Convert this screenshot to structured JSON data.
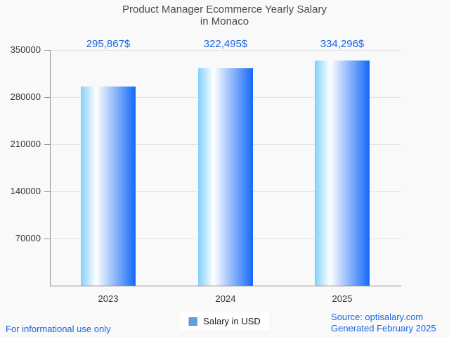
{
  "page": {
    "background": "#f9f9f9"
  },
  "title": {
    "line1": "Product Manager Ecommerce Yearly Salary",
    "line2": "in Monaco"
  },
  "chart_data": {
    "type": "bar",
    "title": "Product Manager Ecommerce Yearly Salary in Monaco",
    "categories": [
      "2023",
      "2024",
      "2025"
    ],
    "series": [
      {
        "name": "Salary in USD",
        "values": [
          295867,
          322495,
          334296
        ]
      }
    ],
    "value_labels": [
      "295,867$",
      "322,495$",
      "334,296$"
    ],
    "xlabel": "",
    "ylabel": "",
    "ylim": [
      0,
      350000
    ],
    "y_ticks": [
      {
        "value": 350000,
        "label": "350000"
      },
      {
        "value": 280000,
        "label": "280000"
      },
      {
        "value": 210000,
        "label": "210000"
      },
      {
        "value": 140000,
        "label": "140000"
      },
      {
        "value": 70000,
        "label": "70000"
      }
    ],
    "grid": true,
    "legend_position": "bottom",
    "bar_gradient": [
      "#82d1fb",
      "#ffffff",
      "#1469f8"
    ],
    "value_label_color": "#1a66e0",
    "legend_marker_color": "#5b9ee9"
  },
  "legend": {
    "label": "Salary in USD"
  },
  "footer": {
    "left_note": "For informational use only",
    "source_line1": "Source: optisalary.com",
    "source_line2": "Generated February 2025"
  }
}
